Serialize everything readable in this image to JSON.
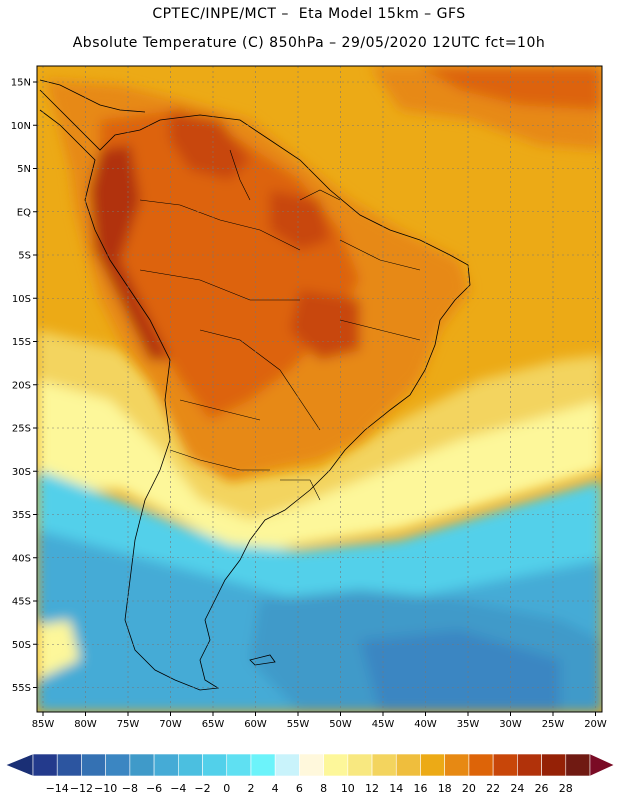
{
  "header": {
    "line1": "CPTEC/INPE/MCT –  Eta Model 15km – GFS",
    "line2": "Absolute Temperature (C) 850hPa – 29/05/2020 12UTC fct=10h"
  },
  "axes": {
    "lat_labels": [
      "15N",
      "10N",
      "5N",
      "EQ",
      "5S",
      "10S",
      "15S",
      "20S",
      "25S",
      "30S",
      "35S",
      "40S",
      "45S",
      "50S",
      "55S"
    ],
    "lon_labels": [
      "85W",
      "80W",
      "75W",
      "70W",
      "65W",
      "60W",
      "55W",
      "50W",
      "45W",
      "40W",
      "35W",
      "30W",
      "25W",
      "20W"
    ]
  },
  "colorbar": {
    "labels": [
      "-14",
      "-12",
      "-10",
      "-8",
      "-6",
      "-4",
      "-2",
      "0",
      "2",
      "4",
      "6",
      "8",
      "10",
      "12",
      "14",
      "16",
      "18",
      "20",
      "22",
      "24",
      "26",
      "28"
    ],
    "colors": [
      "#233a8c",
      "#2c55a0",
      "#3471b3",
      "#3b86c2",
      "#3f9ac9",
      "#45abd6",
      "#4bbfe0",
      "#52d0ea",
      "#5fe0f2",
      "#6cf3fa",
      "#c9f3fb",
      "#fff8dc",
      "#fdf79a",
      "#f8e880",
      "#f3d45e",
      "#efbe3d",
      "#ecaa16",
      "#e78913",
      "#dd6408",
      "#c84609",
      "#b1320a",
      "#952106",
      "#701a12"
    ],
    "end_left": "#1a2f75",
    "end_right": "#7a0b25"
  },
  "map_colors": {
    "ocean_warm": "#ecaa16",
    "warm_pale": "#f3d45e",
    "cold_cyan": "#52d0ea",
    "cold_blue": "#3f9ac9",
    "land_hot": "#dd6408",
    "andes": "#c84609"
  }
}
